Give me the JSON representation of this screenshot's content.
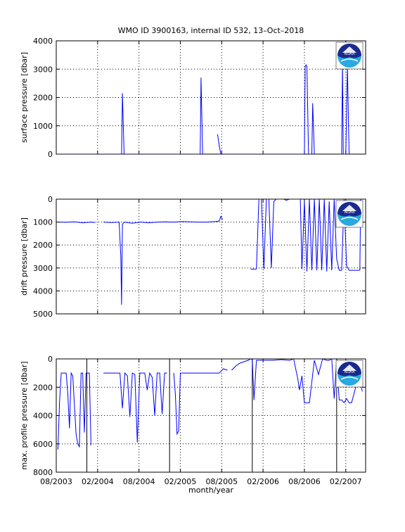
{
  "title": "WMO ID 3900163, internal ID 532, 13–Oct–2018",
  "xlabel": "month/year",
  "colors": {
    "series": "#0000ff",
    "axes": "#000000",
    "noaa_blue": "#1a2a8c",
    "noaa_cyan": "#2aa8e0"
  },
  "logo_icon": "noaa-logo-icon",
  "logo_text": "NOAA",
  "chart_data": [
    {
      "type": "line",
      "id": "surface",
      "ylabel": "surface pressure [dbar]",
      "ylim": [
        0,
        4000
      ],
      "yreverse": false,
      "yticks": [
        0,
        1000,
        2000,
        3000,
        4000
      ],
      "ytick_labels": [
        "0",
        "1000",
        "2000",
        "3000",
        "4000"
      ],
      "xlim": [
        2003.58,
        2007.32
      ],
      "xticks": [
        2003.58,
        2004.08,
        2004.58,
        2005.08,
        2005.58,
        2006.08,
        2006.58,
        2007.08
      ],
      "xtick_labels": [
        "08/2003",
        "02/2004",
        "08/2004",
        "02/2005",
        "08/2005",
        "02/2006",
        "08/2006",
        "02/2007"
      ],
      "show_xtick_labels": false,
      "grid": true,
      "series": [
        {
          "x": [
            2003.6,
            2004.35
          ],
          "y": [
            0,
            0
          ]
        },
        {
          "x": [
            2004.35,
            2004.37,
            2004.38,
            2004.4,
            2004.45,
            2005.3
          ],
          "y": [
            0,
            0,
            2150,
            0,
            0,
            0
          ]
        },
        {
          "x": [
            2005.3,
            2005.32,
            2005.33,
            2005.35
          ],
          "y": [
            0,
            0,
            2700,
            0
          ]
        },
        {
          "x": [
            2005.53,
            2005.55,
            2005.57
          ],
          "y": [
            700,
            300,
            0
          ]
        },
        {
          "x": [
            2005.57,
            2006.58,
            2006.59,
            2006.6,
            2006.61,
            2006.63,
            2006.67,
            2006.68,
            2006.7
          ],
          "y": [
            0,
            0,
            3100,
            3150,
            3100,
            0,
            0,
            1800,
            0
          ]
        },
        {
          "x": [
            2007.0,
            2007.03,
            2007.04,
            2007.05,
            2007.08,
            2007.1,
            2007.12
          ],
          "y": [
            0,
            0,
            3200,
            0,
            0,
            3100,
            0
          ]
        }
      ]
    },
    {
      "type": "line",
      "id": "drift",
      "ylabel": "drift pressure [dbar]",
      "ylim": [
        0,
        5000
      ],
      "yreverse": true,
      "yticks": [
        0,
        1000,
        2000,
        3000,
        4000,
        5000
      ],
      "ytick_labels": [
        "0",
        "1000",
        "2000",
        "3000",
        "4000",
        "5000"
      ],
      "xlim": [
        2003.58,
        2007.32
      ],
      "xticks": [
        2003.58,
        2004.08,
        2004.58,
        2005.08,
        2005.58,
        2006.08,
        2006.58,
        2007.08
      ],
      "xtick_labels": [
        "08/2003",
        "02/2004",
        "08/2004",
        "02/2005",
        "08/2005",
        "02/2006",
        "08/2006",
        "02/2007"
      ],
      "show_xtick_labels": false,
      "grid": true,
      "series": [
        {
          "x": [
            2003.62,
            2003.7,
            2003.8,
            2003.9,
            2004.0,
            2004.05
          ],
          "y": [
            1000,
            1010,
            990,
            1030,
            1000,
            1020
          ]
        },
        {
          "x": [
            2004.15,
            2004.25,
            2004.34,
            2004.36,
            2004.37,
            2004.38,
            2004.4,
            2004.5,
            2004.6,
            2004.7,
            2004.8,
            2004.9,
            2005.0,
            2005.1,
            2005.2,
            2005.3,
            2005.4,
            2005.5,
            2005.55,
            2005.57,
            2005.59
          ],
          "y": [
            1000,
            1020,
            1000,
            2500,
            4600,
            1100,
            1000,
            1050,
            1000,
            1030,
            1000,
            990,
            1000,
            980,
            990,
            1000,
            1000,
            980,
            950,
            750,
            900
          ]
        },
        {
          "x": [
            2005.93,
            2006.0
          ],
          "y": [
            3050,
            3050
          ]
        },
        {
          "x": [
            2006.0,
            2006.03,
            2006.06,
            2006.09,
            2006.12,
            2006.15,
            2006.18,
            2006.21,
            2006.24,
            2006.27,
            2006.3,
            2006.33,
            2006.36,
            2006.4,
            2006.45,
            2006.5
          ],
          "y": [
            3050,
            0,
            0,
            3050,
            0,
            0,
            3000,
            100,
            0,
            0,
            0,
            0,
            50,
            0,
            0,
            0
          ]
        },
        {
          "x": [
            2006.5,
            2006.53,
            2006.55,
            2006.58,
            2006.61,
            2006.64,
            2006.67,
            2006.7,
            2006.73,
            2006.76,
            2006.79,
            2006.82,
            2006.85,
            2006.88,
            2006.91,
            2006.94,
            2006.97,
            2007.0,
            2007.03,
            2007.06,
            2007.09,
            2007.12,
            2007.15,
            2007.2,
            2007.25
          ],
          "y": [
            0,
            0,
            3050,
            100,
            3150,
            0,
            3100,
            0,
            3100,
            0,
            3100,
            0,
            3150,
            100,
            3100,
            0,
            2600,
            3100,
            3100,
            0,
            2900,
            3100,
            3100,
            3100,
            3100
          ]
        },
        {
          "x": [
            2007.25,
            2007.26
          ],
          "y": [
            3100,
            0
          ]
        }
      ]
    },
    {
      "type": "line",
      "id": "maxprofile",
      "ylabel": "max. profile pressure [dbar]",
      "ylim": [
        0,
        8000
      ],
      "yreverse": true,
      "yticks": [
        0,
        2000,
        4000,
        6000,
        8000
      ],
      "ytick_labels": [
        "0",
        "2000",
        "4000",
        "6000",
        "8000"
      ],
      "xlim": [
        2003.58,
        2007.32
      ],
      "xticks": [
        2003.58,
        2004.08,
        2004.58,
        2005.08,
        2005.58,
        2006.08,
        2006.58,
        2007.08
      ],
      "xtick_labels": [
        "08/2003",
        "02/2004",
        "08/2004",
        "02/2005",
        "08/2005",
        "02/2006",
        "08/2006",
        "02/2007"
      ],
      "show_xtick_labels": true,
      "grid": true,
      "vertical_lines": [
        2003.95,
        2004.95,
        2005.95,
        2006.97
      ],
      "series": [
        {
          "x": [
            2003.6,
            2003.62,
            2003.64,
            2003.66,
            2003.7,
            2003.72,
            2003.74,
            2003.76,
            2003.78,
            2003.82,
            2003.84,
            2003.86,
            2003.88,
            2003.9,
            2003.92,
            2003.94,
            2003.96,
            2003.98,
            2004.0
          ],
          "y": [
            6400,
            3000,
            1000,
            1000,
            1000,
            2500,
            4900,
            1000,
            1200,
            5300,
            6000,
            6200,
            1000,
            1000,
            5200,
            1000,
            1000,
            1000,
            6100
          ]
        },
        {
          "x": [
            2004.15,
            2004.25,
            2004.35,
            2004.38,
            2004.41,
            2004.44,
            2004.47,
            2004.5,
            2004.53,
            2004.56,
            2004.59,
            2004.62,
            2004.65,
            2004.68,
            2004.71,
            2004.74,
            2004.77,
            2004.8,
            2004.83,
            2004.86,
            2004.89,
            2004.92
          ],
          "y": [
            1000,
            1000,
            1000,
            3500,
            1000,
            1200,
            4100,
            1000,
            1100,
            5900,
            1000,
            1000,
            1000,
            2200,
            1000,
            1300,
            4000,
            1000,
            1000,
            3900,
            1000,
            1000
          ]
        },
        {
          "x": [
            2005.0,
            2005.02,
            2005.04,
            2005.06,
            2005.08,
            2005.1,
            2005.2,
            2005.3,
            2005.4,
            2005.48,
            2005.55,
            2005.6,
            2005.65
          ],
          "y": [
            1000,
            2500,
            5300,
            5100,
            1000,
            1000,
            1000,
            1000,
            1000,
            1000,
            1000,
            700,
            800
          ]
        },
        {
          "x": [
            2005.7,
            2005.75,
            2005.8,
            2005.85,
            2005.9,
            2005.93,
            2005.95,
            2005.97,
            2006.0
          ],
          "y": [
            800,
            500,
            300,
            200,
            100,
            0,
            50,
            2900,
            100
          ]
        },
        {
          "x": [
            2006.0,
            2006.1,
            2006.2,
            2006.3,
            2006.4,
            2006.45,
            2006.5,
            2006.52,
            2006.55,
            2006.58,
            2006.61,
            2006.64,
            2006.7,
            2006.75,
            2006.8,
            2006.85,
            2006.88,
            2006.91,
            2006.94,
            2006.97,
            2007.0,
            2007.03,
            2007.06,
            2007.09,
            2007.12,
            2007.15,
            2007.2,
            2007.25,
            2007.28
          ],
          "y": [
            100,
            100,
            100,
            50,
            100,
            0,
            1400,
            2200,
            1200,
            3100,
            3100,
            3100,
            100,
            1100,
            0,
            100,
            100,
            0,
            2800,
            100,
            2900,
            2900,
            3100,
            2800,
            3100,
            3100,
            2000,
            1500,
            2300
          ]
        }
      ]
    }
  ]
}
